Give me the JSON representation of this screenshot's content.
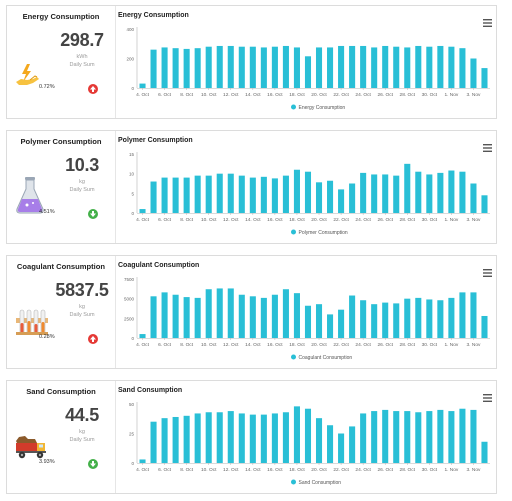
{
  "colors": {
    "bar": "#29bfd6",
    "up": "#e53935",
    "down": "#43b049"
  },
  "panels": [
    {
      "kpi": {
        "title": "Energy Consumption",
        "value": "298.7",
        "unit": "kWh",
        "sub": "Daily Sum",
        "pct": "0.72%",
        "trend": "up",
        "icon": "hand-energy-icon"
      },
      "chart_data": {
        "type": "bar",
        "title": "Energy Consumption",
        "legend": "Energy Consumption",
        "ylim": [
          0,
          400
        ],
        "yticks": [
          "400",
          "200",
          "0"
        ],
        "ytick_values": [
          400,
          200,
          0
        ],
        "tick_labels": [
          "4. Oct",
          "6. Oct",
          "8. Oct",
          "10. Oct",
          "12. Oct",
          "14. Oct",
          "16. Oct",
          "18. Oct",
          "20. Oct",
          "22. Oct",
          "24. Oct",
          "26. Oct",
          "28. Oct",
          "30. Oct",
          "1. Nov",
          "3. Nov"
        ],
        "values": [
          30,
          260,
          275,
          270,
          265,
          270,
          280,
          285,
          285,
          280,
          280,
          275,
          280,
          285,
          275,
          215,
          275,
          275,
          285,
          285,
          285,
          275,
          285,
          280,
          275,
          285,
          280,
          285,
          280,
          270,
          200,
          135
        ]
      }
    },
    {
      "kpi": {
        "title": "Polymer Consumption",
        "value": "10.3",
        "unit": "kg",
        "sub": "Daily Sum",
        "pct": "4.51%",
        "trend": "down",
        "icon": "flask-icon"
      },
      "chart_data": {
        "type": "bar",
        "title": "Polymer Consumption",
        "legend": "Polymer Consumption",
        "ylim": [
          0,
          15
        ],
        "yticks": [
          "15",
          "10",
          "5",
          "0"
        ],
        "ytick_values": [
          15,
          10,
          5,
          0
        ],
        "tick_labels": [
          "4. Oct",
          "6. Oct",
          "8. Oct",
          "10. Oct",
          "12. Oct",
          "14. Oct",
          "16. Oct",
          "18. Oct",
          "20. Oct",
          "22. Oct",
          "24. Oct",
          "26. Oct",
          "28. Oct",
          "30. Oct",
          "1. Nov",
          "3. Nov"
        ],
        "values": [
          1,
          8,
          9,
          9,
          9,
          9.5,
          9.5,
          10,
          10,
          9.5,
          9,
          9.2,
          8.8,
          9.5,
          11,
          10.5,
          7.8,
          8.2,
          6,
          7.5,
          10.2,
          9.8,
          9.8,
          9.5,
          12.5,
          10.5,
          9.8,
          10.2,
          10.8,
          10.5,
          7.5,
          4.5
        ]
      }
    },
    {
      "kpi": {
        "title": "Coagulant Consumption",
        "value": "5837.5",
        "unit": "kg",
        "sub": "Daily Sum",
        "pct": "0.28%",
        "trend": "up",
        "icon": "test-tubes-icon"
      },
      "chart_data": {
        "type": "bar",
        "title": "Coagulant Consumption",
        "legend": "Coagulant Consumption",
        "ylim": [
          0,
          7500
        ],
        "yticks": [
          "7500",
          "5000",
          "2500",
          "0"
        ],
        "ytick_values": [
          7500,
          5000,
          2500,
          0
        ],
        "tick_labels": [
          "4. Oct",
          "6. Oct",
          "8. Oct",
          "10. Oct",
          "12. Oct",
          "14. Oct",
          "16. Oct",
          "18. Oct",
          "20. Oct",
          "22. Oct",
          "24. Oct",
          "26. Oct",
          "28. Oct",
          "30. Oct",
          "1. Nov",
          "3. Nov"
        ],
        "values": [
          500,
          5300,
          5800,
          5500,
          5200,
          5100,
          6200,
          6300,
          6300,
          5500,
          5300,
          5100,
          5500,
          6200,
          5700,
          4100,
          4300,
          3000,
          3600,
          5400,
          4800,
          4300,
          4500,
          4400,
          5000,
          5100,
          4900,
          4800,
          5100,
          5800,
          5800,
          2800
        ]
      }
    },
    {
      "kpi": {
        "title": "Sand Consumption",
        "value": "44.5",
        "unit": "kg",
        "sub": "Daily Sum",
        "pct": "3.93%",
        "trend": "down",
        "icon": "dump-truck-icon"
      },
      "chart_data": {
        "type": "bar",
        "title": "Sand Consumption",
        "legend": "Sand Consumption",
        "ylim": [
          0,
          50
        ],
        "yticks": [
          "50",
          "25",
          "0"
        ],
        "ytick_values": [
          50,
          25,
          0
        ],
        "tick_labels": [
          "4. Oct",
          "6. Oct",
          "8. Oct",
          "10. Oct",
          "12. Oct",
          "14. Oct",
          "16. Oct",
          "18. Oct",
          "20. Oct",
          "22. Oct",
          "24. Oct",
          "26. Oct",
          "28. Oct",
          "30. Oct",
          "1. Nov",
          "3. Nov"
        ],
        "values": [
          3,
          35,
          38,
          39,
          40,
          42,
          43,
          43,
          44,
          42,
          41,
          41,
          42,
          43,
          48,
          46,
          38,
          32,
          25,
          31,
          42,
          44,
          45,
          44,
          44,
          43,
          44,
          45,
          44,
          46,
          45,
          18
        ]
      }
    }
  ]
}
